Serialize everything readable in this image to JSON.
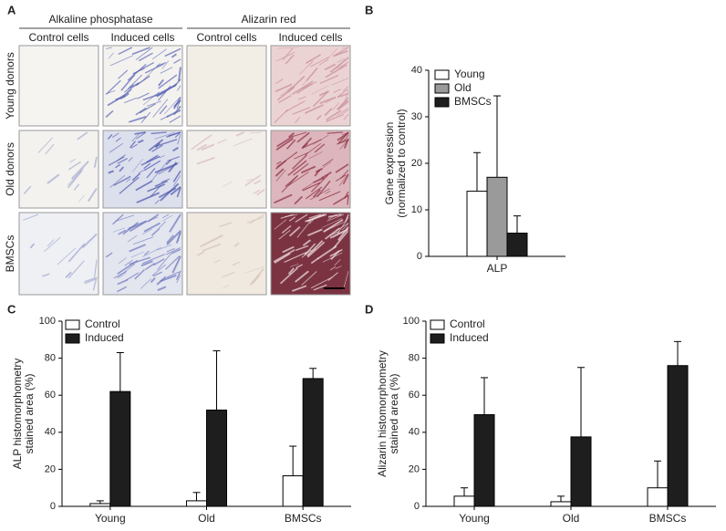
{
  "panel_a": {
    "label": "A",
    "groups": [
      "Alkaline phosphatase",
      "Alizarin red"
    ],
    "columns": [
      "Control cells",
      "Induced cells",
      "Control cells",
      "Induced cells"
    ],
    "rows": [
      "Young donors",
      "Old donors",
      "BMSCs"
    ]
  },
  "chart_data": [
    {
      "type": "bar",
      "panel": "B",
      "ylabel": [
        "Gene expression",
        "(normalized to control)"
      ],
      "categories": [
        "ALP"
      ],
      "series": [
        {
          "name": "Young",
          "color": "#ffffff",
          "values": [
            14
          ],
          "errors": [
            8.3
          ]
        },
        {
          "name": "Old",
          "color": "#9a9a9a",
          "values": [
            17
          ],
          "errors": [
            17.5
          ]
        },
        {
          "name": "BMSCs",
          "color": "#1e1e1e",
          "values": [
            5
          ],
          "errors": [
            3.7
          ]
        }
      ],
      "ylim": [
        0,
        40
      ],
      "yticks": [
        0,
        10,
        20,
        30,
        40
      ],
      "legend": "upper left"
    },
    {
      "type": "bar",
      "panel": "C",
      "ylabel": [
        "ALP histomorphometry",
        "stained area (%)"
      ],
      "categories": [
        "Young",
        "Old",
        "BMSCs"
      ],
      "series": [
        {
          "name": "Control",
          "color": "#ffffff",
          "values": [
            1.5,
            3,
            16.5
          ],
          "errors": [
            1.5,
            4.5,
            16
          ]
        },
        {
          "name": "Induced",
          "color": "#1e1e1e",
          "values": [
            62,
            52,
            69
          ],
          "errors": [
            21,
            32,
            5.5
          ]
        }
      ],
      "ylim": [
        0,
        100
      ],
      "yticks": [
        0,
        20,
        40,
        60,
        80,
        100
      ],
      "legend": "upper left"
    },
    {
      "type": "bar",
      "panel": "D",
      "ylabel": [
        "Alizarin histomorphometry",
        "stained area (%)"
      ],
      "categories": [
        "Young",
        "Old",
        "BMSCs"
      ],
      "series": [
        {
          "name": "Control",
          "color": "#ffffff",
          "values": [
            5.5,
            2.5,
            10
          ],
          "errors": [
            4.5,
            3,
            14.5
          ]
        },
        {
          "name": "Induced",
          "color": "#1e1e1e",
          "values": [
            49.5,
            37.5,
            76
          ],
          "errors": [
            20,
            37.5,
            13
          ]
        }
      ],
      "ylim": [
        0,
        100
      ],
      "yticks": [
        0,
        20,
        40,
        60,
        80,
        100
      ],
      "legend": "upper left"
    }
  ]
}
